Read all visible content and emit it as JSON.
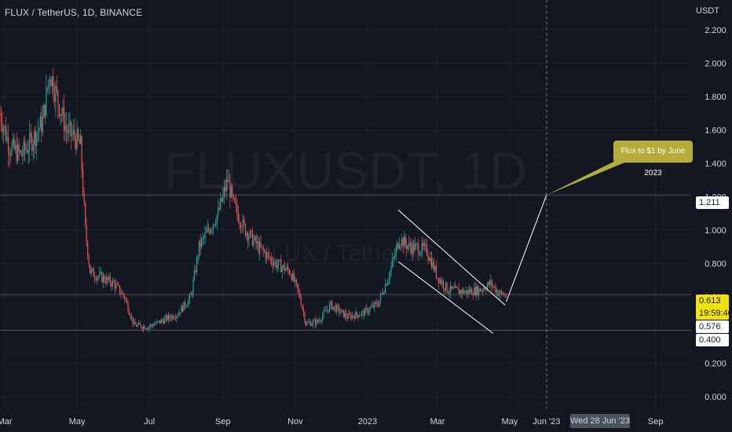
{
  "symbol_title": "FLUX / TetherUS, 1D, BINANCE",
  "watermark": {
    "main": "FLUXUSDT, 1D",
    "sub": "FLUX / TetherUS"
  },
  "chart_data": {
    "type": "candlestick",
    "currency_label": "USDT",
    "y_ticks": [
      "2.200",
      "2.000",
      "1.800",
      "1.600",
      "1.400",
      "1.200",
      "1.000",
      "0.800",
      "0.600",
      "0.400",
      "0.200",
      "0.000"
    ],
    "y_tick_values": [
      2.2,
      2.0,
      1.8,
      1.6,
      1.4,
      1.2,
      1.0,
      0.8,
      0.6,
      0.4,
      0.2,
      0.0
    ],
    "ylim": [
      -0.07,
      2.38
    ],
    "x_ticks": [
      "Mar",
      "May",
      "Jul",
      "Sep",
      "Nov",
      "2023",
      "Mar",
      "May",
      "Jun '23",
      "Sep"
    ],
    "x_tick_dates": [
      "2022-03-01",
      "2022-05-01",
      "2022-07-01",
      "2022-09-01",
      "2022-11-01",
      "2023-01-01",
      "2023-03-01",
      "2023-05-01",
      "2023-06-01",
      "2023-09-01"
    ],
    "xlim": [
      "2022-02-25",
      "2023-10-01"
    ],
    "price_path": [
      [
        "2022-02-25",
        1.7
      ],
      [
        "2022-03-05",
        1.5
      ],
      [
        "2022-03-15",
        1.45
      ],
      [
        "2022-03-25",
        1.55
      ],
      [
        "2022-04-02",
        1.65
      ],
      [
        "2022-04-08",
        1.95
      ],
      [
        "2022-04-14",
        1.8
      ],
      [
        "2022-04-22",
        1.6
      ],
      [
        "2022-04-30",
        1.55
      ],
      [
        "2022-05-04",
        1.5
      ],
      [
        "2022-05-08",
        1.0
      ],
      [
        "2022-05-12",
        0.75
      ],
      [
        "2022-05-20",
        0.72
      ],
      [
        "2022-06-01",
        0.68
      ],
      [
        "2022-06-10",
        0.6
      ],
      [
        "2022-06-18",
        0.43
      ],
      [
        "2022-06-30",
        0.42
      ],
      [
        "2022-07-10",
        0.45
      ],
      [
        "2022-07-25",
        0.5
      ],
      [
        "2022-08-05",
        0.6
      ],
      [
        "2022-08-12",
        0.9
      ],
      [
        "2022-08-20",
        1.0
      ],
      [
        "2022-08-28",
        1.1
      ],
      [
        "2022-09-05",
        1.3
      ],
      [
        "2022-09-10",
        1.15
      ],
      [
        "2022-09-20",
        1.0
      ],
      [
        "2022-10-01",
        0.9
      ],
      [
        "2022-10-15",
        0.8
      ],
      [
        "2022-10-28",
        0.75
      ],
      [
        "2022-11-05",
        0.6
      ],
      [
        "2022-11-10",
        0.44
      ],
      [
        "2022-11-20",
        0.45
      ],
      [
        "2022-12-01",
        0.55
      ],
      [
        "2022-12-15",
        0.48
      ],
      [
        "2022-12-28",
        0.5
      ],
      [
        "2023-01-10",
        0.56
      ],
      [
        "2023-01-20",
        0.75
      ],
      [
        "2023-01-28",
        0.95
      ],
      [
        "2023-02-05",
        0.9
      ],
      [
        "2023-02-20",
        0.88
      ],
      [
        "2023-03-01",
        0.72
      ],
      [
        "2023-03-10",
        0.64
      ],
      [
        "2023-03-25",
        0.63
      ],
      [
        "2023-04-05",
        0.64
      ],
      [
        "2023-04-15",
        0.68
      ],
      [
        "2023-04-22",
        0.62
      ],
      [
        "2023-04-28",
        0.61
      ]
    ],
    "channel_upper": [
      [
        "2023-01-27",
        1.12
      ],
      [
        "2023-04-27",
        0.55
      ]
    ],
    "channel_lower": [
      [
        "2023-01-27",
        0.81
      ],
      [
        "2023-04-17",
        0.38
      ]
    ],
    "projection_line": [
      [
        "2023-04-28",
        0.57
      ],
      [
        "2023-06-01",
        1.21
      ]
    ],
    "horizontal_lines": [
      1.211,
      0.613,
      0.4
    ],
    "vertical_marker_date": "2023-06-01",
    "annotation": "Flux to $1 by June 2023",
    "price_labels": {
      "level": "1.211",
      "last": "0.613",
      "countdown": "19:59:40",
      "support": "0.576",
      "low": "0.400"
    },
    "crosshair_date_label": "Wed 28 Jun '23",
    "colors": {
      "up": "#26a69a",
      "down": "#ef5350",
      "background": "#131722",
      "callout": "#b5ac3a",
      "last_price_tag": "#f2e40a"
    }
  }
}
